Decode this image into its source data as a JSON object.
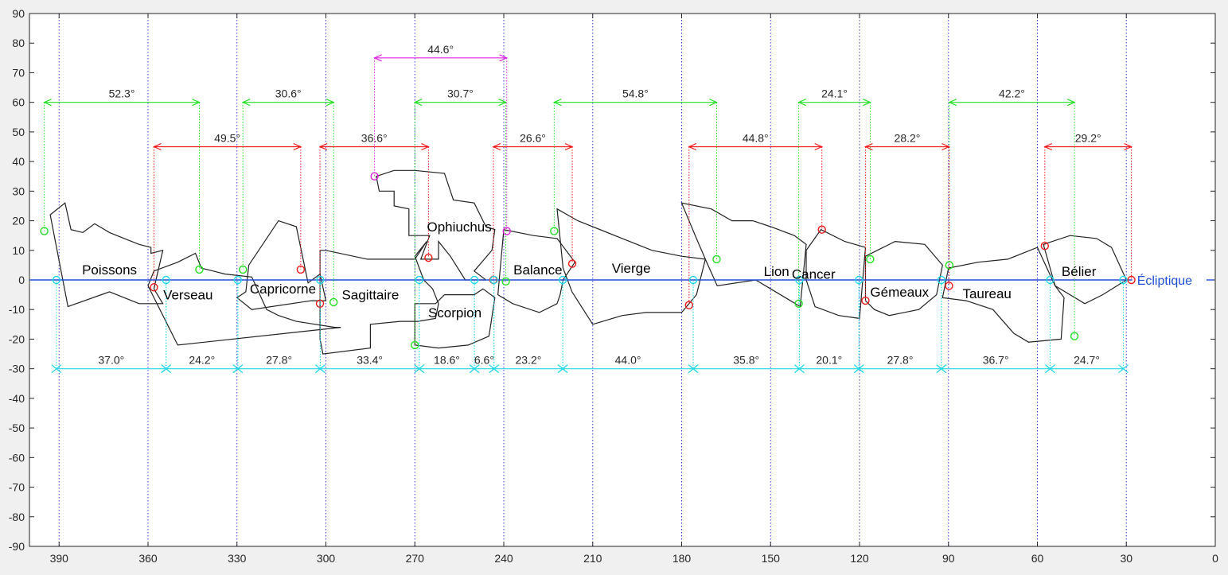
{
  "chart_data": {
    "type": "line",
    "title": "",
    "xlabel": "",
    "ylabel": "",
    "xlim": [
      400,
      0
    ],
    "ylim": [
      -90,
      90
    ],
    "x_reversed": true,
    "grid": "dotted blue vertical lines every 30°",
    "xticks": [
      390,
      360,
      330,
      300,
      270,
      240,
      210,
      180,
      150,
      120,
      90,
      60,
      30,
      0
    ],
    "yticks": [
      90,
      80,
      70,
      60,
      50,
      40,
      30,
      20,
      10,
      0,
      -10,
      -20,
      -30,
      -40,
      -50,
      -60,
      -70,
      -80,
      -90
    ],
    "ecliptic": {
      "label": "Écliptique",
      "y": 0,
      "color": "#1f4fd6"
    },
    "colors": {
      "green": "#22e022",
      "red": "#f01818",
      "cyan": "#22d8e8",
      "magenta": "#e022e0",
      "axis": "#262626",
      "grid": "#4040e0"
    },
    "measurements_green": [
      {
        "label": "52.3°",
        "x1": 395,
        "x2": 342.7,
        "y": 60
      },
      {
        "label": "30.6°",
        "x1": 328,
        "x2": 297.4,
        "y": 60
      },
      {
        "label": "30.7°",
        "x1": 270,
        "x2": 239.3,
        "y": 60
      },
      {
        "label": "54.8°",
        "x1": 223,
        "x2": 168.2,
        "y": 60
      },
      {
        "label": "24.1°",
        "x1": 140.5,
        "x2": 116.4,
        "y": 60
      },
      {
        "label": "42.2°",
        "x1": 89.7,
        "x2": 47.5,
        "y": 60
      }
    ],
    "measurements_red": [
      {
        "label": "49.5°",
        "x1": 358,
        "x2": 308.5,
        "y": 45
      },
      {
        "label": "36.6°",
        "x1": 302,
        "x2": 265.4,
        "y": 45
      },
      {
        "label": "26.6°",
        "x1": 243.5,
        "x2": 216.9,
        "y": 45
      },
      {
        "label": "44.8°",
        "x1": 177.5,
        "x2": 132.7,
        "y": 45
      },
      {
        "label": "28.2°",
        "x1": 118,
        "x2": 89.8,
        "y": 45
      },
      {
        "label": "29.2°",
        "x1": 57.5,
        "x2": 28.3,
        "y": 45
      }
    ],
    "measurements_magenta": [
      {
        "label": "44.6°",
        "x1": 283.6,
        "x2": 239,
        "y": 75
      }
    ],
    "measurements_cyan": [
      {
        "label": "37.0°",
        "x1": 390.9,
        "x2": 353.9,
        "y": -30
      },
      {
        "label": "24.2°",
        "x1": 353.9,
        "x2": 329.7,
        "y": -30
      },
      {
        "label": "27.8°",
        "x1": 329.7,
        "x2": 301.9,
        "y": -30
      },
      {
        "label": "33.4°",
        "x1": 301.9,
        "x2": 268.5,
        "y": -30
      },
      {
        "label": "18.6°",
        "x1": 268.5,
        "x2": 249.9,
        "y": -30
      },
      {
        "label": "6.6°",
        "x1": 249.9,
        "x2": 243.3,
        "y": -30
      },
      {
        "label": "23.2°",
        "x1": 243.3,
        "x2": 220.1,
        "y": -30
      },
      {
        "label": "44.0°",
        "x1": 220.1,
        "x2": 176.1,
        "y": -30
      },
      {
        "label": "35.8°",
        "x1": 176.1,
        "x2": 140.3,
        "y": -30
      },
      {
        "label": "20.1°",
        "x1": 140.3,
        "x2": 120.2,
        "y": -30
      },
      {
        "label": "27.8°",
        "x1": 120.2,
        "x2": 92.4,
        "y": -30
      },
      {
        "label": "36.7°",
        "x1": 92.4,
        "x2": 55.7,
        "y": -30
      },
      {
        "label": "24.7°",
        "x1": 55.7,
        "x2": 31,
        "y": -30
      }
    ],
    "constellations": [
      {
        "name": "Poissons",
        "label_x": 373,
        "label_y": 3.5,
        "outline": [
          [
            393,
            22
          ],
          [
            388,
            26
          ],
          [
            386,
            17
          ],
          [
            382,
            16
          ],
          [
            378,
            19
          ],
          [
            373,
            16
          ],
          [
            368,
            14
          ],
          [
            363,
            12
          ],
          [
            359,
            11
          ],
          [
            359,
            9
          ],
          [
            355,
            10
          ],
          [
            358,
            -3
          ],
          [
            355,
            -8
          ],
          [
            363,
            -8
          ],
          [
            373,
            -4
          ],
          [
            387,
            -9
          ],
          [
            393,
            22
          ]
        ]
      },
      {
        "name": "Verseau",
        "label_x": 346.5,
        "label_y": -5,
        "outline": [
          [
            360,
            -2
          ],
          [
            358,
            3
          ],
          [
            350,
            6
          ],
          [
            344,
            9
          ],
          [
            342,
            4
          ],
          [
            338,
            3
          ],
          [
            334,
            2
          ],
          [
            325,
            1
          ],
          [
            320,
            -10
          ],
          [
            316,
            -12
          ],
          [
            310,
            -14
          ],
          [
            297,
            -16
          ],
          [
            295,
            -16
          ],
          [
            350,
            -22
          ],
          [
            360,
            -2
          ]
        ]
      },
      {
        "name": "Capricorne",
        "label_x": 314.5,
        "label_y": -3,
        "outline": [
          [
            326,
            5
          ],
          [
            327,
            -4
          ],
          [
            330,
            -6
          ],
          [
            325,
            -10
          ],
          [
            305,
            -7
          ],
          [
            300,
            -7
          ],
          [
            302,
            2
          ],
          [
            306,
            -1
          ],
          [
            310,
            18
          ],
          [
            316,
            20
          ],
          [
            326,
            5
          ]
        ]
      },
      {
        "name": "Sagittaire",
        "label_x": 285,
        "label_y": -5,
        "outline": [
          [
            302,
            -20
          ],
          [
            301,
            -25
          ],
          [
            285,
            -23
          ],
          [
            285,
            -15
          ],
          [
            275,
            -14
          ],
          [
            269,
            -14
          ],
          [
            263,
            -13
          ],
          [
            262,
            -8
          ],
          [
            264,
            -3
          ],
          [
            267,
            0
          ],
          [
            270,
            8
          ],
          [
            266,
            13
          ],
          [
            270,
            7
          ],
          [
            286,
            7
          ],
          [
            300,
            10
          ],
          [
            302,
            10
          ],
          [
            302,
            -20
          ]
        ]
      },
      {
        "name": "Ophiuchus",
        "label_x": 255,
        "label_y": 18,
        "outline": [
          [
            283,
            35
          ],
          [
            277,
            37
          ],
          [
            270,
            37
          ],
          [
            260,
            36
          ],
          [
            257,
            27
          ],
          [
            250,
            26
          ],
          [
            246,
            18
          ],
          [
            243,
            17
          ],
          [
            244,
            10
          ],
          [
            250,
            3
          ],
          [
            246,
            0
          ],
          [
            253,
            0
          ],
          [
            258,
            8
          ],
          [
            262,
            13
          ],
          [
            262,
            7
          ],
          [
            268,
            7
          ],
          [
            265,
            15
          ],
          [
            272,
            15
          ],
          [
            272,
            24
          ],
          [
            277,
            25
          ],
          [
            277,
            30
          ],
          [
            282,
            30
          ],
          [
            283,
            35
          ]
        ]
      },
      {
        "name": "Scorpion",
        "label_x": 256.5,
        "label_y": -11,
        "outline": [
          [
            270,
            -21
          ],
          [
            270,
            -8
          ],
          [
            263,
            -8
          ],
          [
            260,
            -5
          ],
          [
            250,
            -5
          ],
          [
            247,
            -3
          ],
          [
            243,
            -6
          ],
          [
            245,
            -19
          ],
          [
            252,
            -22
          ],
          [
            262,
            -23
          ],
          [
            270,
            -22
          ]
        ]
      },
      {
        "name": "Balance",
        "label_x": 228.5,
        "label_y": 3.5,
        "outline": [
          [
            240,
            17
          ],
          [
            230,
            15
          ],
          [
            222,
            14
          ],
          [
            216,
            6
          ],
          [
            220,
            0
          ],
          [
            221,
            -5
          ],
          [
            222,
            -8
          ],
          [
            228,
            -11
          ],
          [
            237,
            -8
          ],
          [
            242,
            -5
          ],
          [
            240,
            17
          ]
        ]
      },
      {
        "name": "Vierge",
        "label_x": 197,
        "label_y": 4,
        "outline": [
          [
            222,
            24
          ],
          [
            215,
            20
          ],
          [
            200,
            14
          ],
          [
            190,
            10
          ],
          [
            180,
            8
          ],
          [
            172,
            7
          ],
          [
            175,
            -5
          ],
          [
            180,
            -11
          ],
          [
            192,
            -11
          ],
          [
            200,
            -12
          ],
          [
            210,
            -15
          ],
          [
            217,
            -4
          ],
          [
            220,
            4
          ],
          [
            222,
            24
          ]
        ]
      },
      {
        "name": "Lion",
        "label_x": 148,
        "label_y": 3,
        "outline": [
          [
            172,
            7
          ],
          [
            175,
            14
          ],
          [
            180,
            26
          ],
          [
            170,
            24
          ],
          [
            163,
            20
          ],
          [
            156,
            20
          ],
          [
            150,
            18
          ],
          [
            142,
            15
          ],
          [
            138,
            12
          ],
          [
            140,
            -9
          ],
          [
            145,
            -6
          ],
          [
            150,
            -3
          ],
          [
            155,
            0
          ],
          [
            168,
            -2
          ],
          [
            172,
            7
          ]
        ]
      },
      {
        "name": "Cancer",
        "label_x": 135.5,
        "label_y": 2,
        "outline": [
          [
            138,
            10
          ],
          [
            133,
            17
          ],
          [
            125,
            13
          ],
          [
            118,
            11
          ],
          [
            120,
            -13
          ],
          [
            127,
            -12
          ],
          [
            135,
            -9
          ],
          [
            138,
            0
          ],
          [
            138,
            10
          ]
        ]
      },
      {
        "name": "Gémeaux",
        "label_x": 106.5,
        "label_y": -4,
        "outline": [
          [
            118,
            8
          ],
          [
            108,
            13
          ],
          [
            98,
            12
          ],
          [
            92,
            5
          ],
          [
            94,
            -5
          ],
          [
            100,
            -10
          ],
          [
            110,
            -12
          ],
          [
            115,
            -10
          ],
          [
            118,
            -7
          ],
          [
            118,
            8
          ]
        ]
      },
      {
        "name": "Taureau",
        "label_x": 77,
        "label_y": -4.5,
        "outline": [
          [
            90,
            4
          ],
          [
            80,
            6
          ],
          [
            70,
            7
          ],
          [
            60,
            11
          ],
          [
            54,
            -2
          ],
          [
            51,
            -6
          ],
          [
            52,
            -20
          ],
          [
            63,
            -21
          ],
          [
            68,
            -18
          ],
          [
            75,
            -10
          ],
          [
            84,
            -7
          ],
          [
            92,
            -6
          ],
          [
            90,
            4
          ]
        ]
      },
      {
        "name": "Bélier",
        "label_x": 46,
        "label_y": 3,
        "outline": [
          [
            58,
            12
          ],
          [
            49,
            15
          ],
          [
            40,
            14
          ],
          [
            35,
            11
          ],
          [
            30,
            0
          ],
          [
            38,
            -5
          ],
          [
            44,
            -8
          ],
          [
            54,
            -2
          ],
          [
            58,
            12
          ]
        ]
      }
    ]
  }
}
